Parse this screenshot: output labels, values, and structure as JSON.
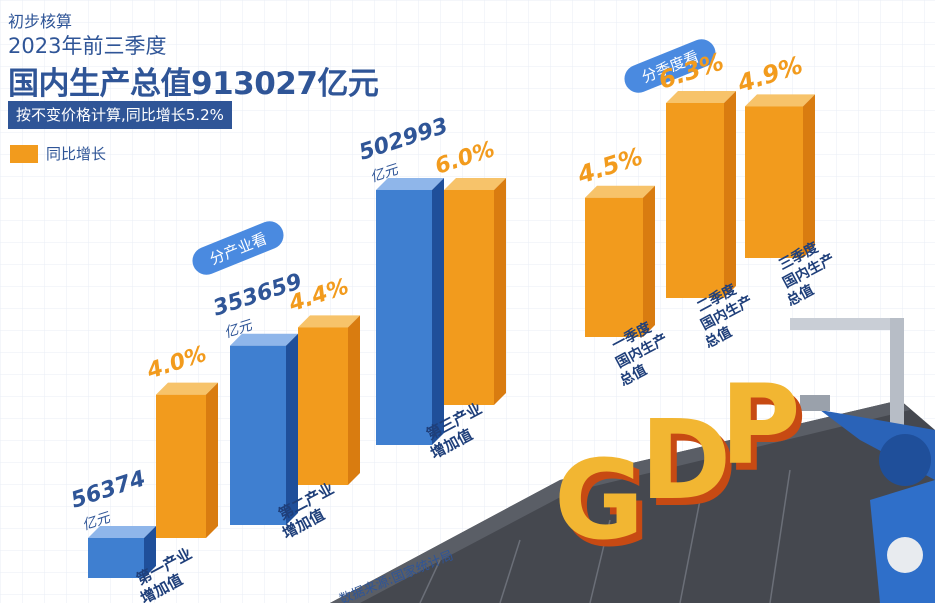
{
  "header": {
    "line1": "初步核算",
    "line2": "2023年前三季度",
    "line3": "国内生产总值913027亿元",
    "line4": "按不变价格计算,同比增长5.2%"
  },
  "legend": {
    "label": "同比增长"
  },
  "tags": {
    "industry": "分产业看",
    "quarter": "分季度看"
  },
  "source": "数据来源:国家统计局",
  "decor": {
    "gdp_text": "GDP"
  },
  "colors": {
    "blue": "#3f7fd0",
    "blue_dark": "#1f4f9a",
    "orange": "#f29b1d",
    "orange_dark": "#d97c10",
    "text_blue": "#2f5597"
  },
  "chart_data": [
    {
      "type": "bar",
      "title": "分产业看",
      "categories": [
        "第一产业增加值",
        "第二产业增加值",
        "第三产业增加值"
      ],
      "series": [
        {
          "name": "亿元",
          "values": [
            56374,
            353659,
            502993
          ]
        },
        {
          "name": "同比增长",
          "values": [
            4.0,
            4.4,
            6.0
          ]
        }
      ],
      "value_labels": [
        "56374",
        "353659",
        "502993"
      ],
      "unit_label": "亿元",
      "growth_labels": [
        "4.0%",
        "4.4%",
        "6.0%"
      ]
    },
    {
      "type": "bar",
      "title": "分季度看",
      "categories": [
        "一季度国内生产总值",
        "二季度国内生产总值",
        "三季度国内生产总值"
      ],
      "series": [
        {
          "name": "同比增长",
          "values": [
            4.5,
            6.3,
            4.9
          ]
        }
      ],
      "growth_labels": [
        "4.5%",
        "6.3%",
        "4.9%"
      ]
    }
  ]
}
